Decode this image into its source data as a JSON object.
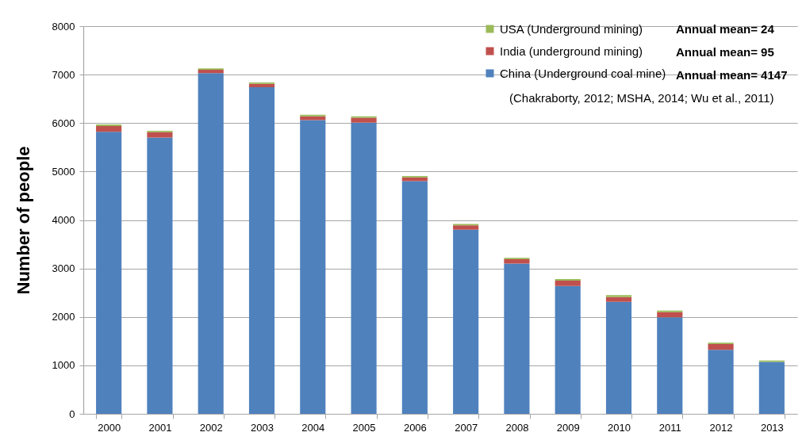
{
  "chart_data": {
    "type": "bar",
    "stacked": true,
    "categories": [
      "2000",
      "2001",
      "2002",
      "2003",
      "2004",
      "2005",
      "2006",
      "2007",
      "2008",
      "2009",
      "2010",
      "2011",
      "2012",
      "2013"
    ],
    "series": [
      {
        "name": "China (Underground coal mine)",
        "color": "#4f81bd",
        "values": [
          5820,
          5700,
          7030,
          6740,
          6060,
          6010,
          4800,
          3800,
          3100,
          2640,
          2310,
          1990,
          1320,
          1070
        ]
      },
      {
        "name": "India (underground mining)",
        "color": "#c0504d",
        "values": [
          120,
          110,
          70,
          70,
          80,
          100,
          80,
          90,
          90,
          110,
          100,
          110,
          120,
          null
        ]
      },
      {
        "name": "USA (Underground mining)",
        "color": "#9bbb59",
        "values": [
          30,
          30,
          30,
          30,
          30,
          30,
          30,
          30,
          30,
          30,
          40,
          30,
          30,
          30
        ]
      }
    ],
    "ylabel": "Number of people",
    "ylim": [
      0,
      8000
    ],
    "yticks": [
      0,
      1000,
      2000,
      3000,
      4000,
      5000,
      6000,
      7000,
      8000
    ],
    "grid": "y",
    "legend": "top right",
    "annotations": [
      "Annual mean= 24",
      "Annual mean= 95",
      "Annual mean= 4147",
      "(Chakraborty, 2012; MSHA, 2014; Wu et al., 2011)"
    ]
  }
}
